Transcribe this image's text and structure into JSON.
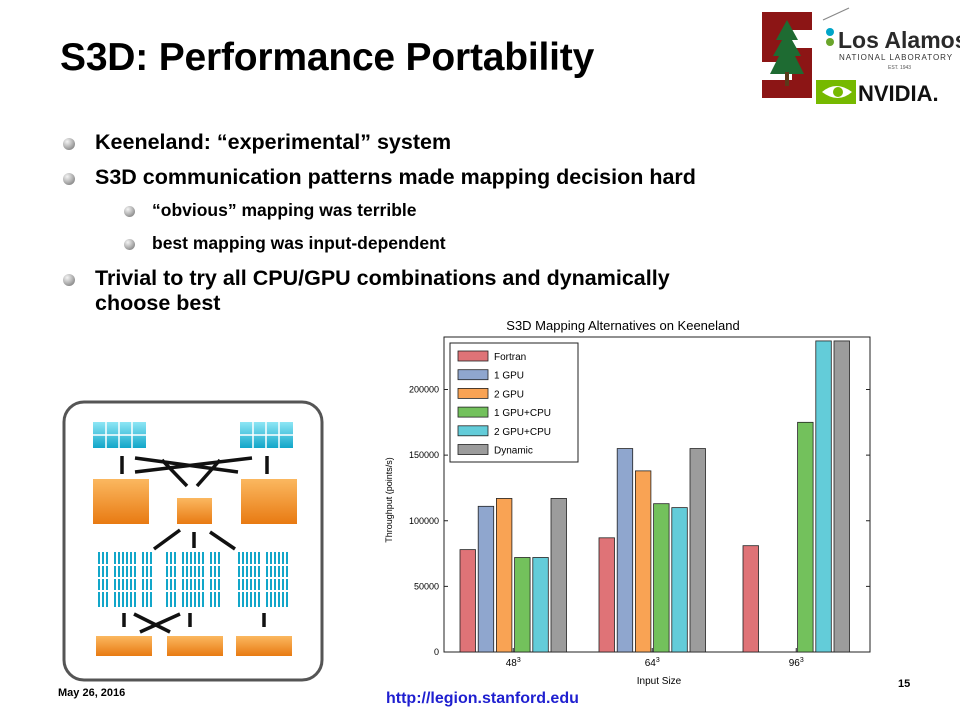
{
  "slide": {
    "title": "S3D: Performance Portability",
    "bullets": [
      "Keeneland: “experimental” system",
      "S3D communication patterns made mapping decision hard"
    ],
    "sub_bullets": [
      "“obvious” mapping was terrible",
      "best mapping was input-dependent"
    ],
    "bullet3": [
      "Trivial to try all CPU/GPU combinations and dynamically",
      "choose best"
    ],
    "date": "May 26, 2016",
    "url": "http://legion.stanford.edu",
    "page_number": "15"
  },
  "logos": {
    "stanford_icon": "stanford-tree-logo",
    "los_alamos": {
      "name": "Los Alamos",
      "line2": "NATIONAL LABORATORY",
      "line3": "EST. 1943"
    },
    "nvidia": "NVIDIA."
  },
  "colors": {
    "stanford_red": "#8c1515",
    "nvidia_green": "#76b900",
    "teal": "#00a5c8",
    "orange": "#f08a24"
  },
  "chart_data": {
    "type": "bar",
    "title": "S3D Mapping Alternatives on Keeneland",
    "xlabel": "Input Size",
    "ylabel": "Throughput (points/s)",
    "categories": [
      "48³",
      "64³",
      "96³"
    ],
    "ylim": [
      0,
      240000
    ],
    "yticks": [
      0,
      50000,
      100000,
      150000,
      200000
    ],
    "legend_position": "top-left",
    "series": [
      {
        "name": "Fortran",
        "color": "#df7377",
        "values": [
          78000,
          87000,
          81000
        ]
      },
      {
        "name": "1 GPU",
        "color": "#8fa6ce",
        "values": [
          111000,
          155000,
          null
        ]
      },
      {
        "name": "2 GPU",
        "color": "#f9a354",
        "values": [
          117000,
          138000,
          null
        ]
      },
      {
        "name": "1 GPU+CPU",
        "color": "#73c15c",
        "values": [
          72000,
          113000,
          175000
        ]
      },
      {
        "name": "2 GPU+CPU",
        "color": "#63ccd9",
        "values": [
          72000,
          110000,
          237000
        ]
      },
      {
        "name": "Dynamic",
        "color": "#9c9c9c",
        "values": [
          117000,
          155000,
          237000
        ]
      }
    ]
  }
}
